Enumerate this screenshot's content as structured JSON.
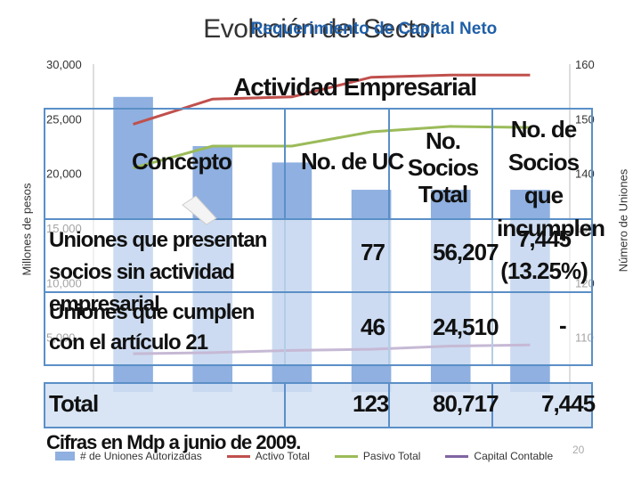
{
  "title_main": "Evolución del Sector",
  "title_overlay": "Requerimiento de Capital Neto",
  "table_title": "Actividad Empresarial",
  "table": {
    "headers": [
      "Concepto",
      "No. de UC",
      "No. Socios Total",
      "No. de Socios que incumplen"
    ],
    "rows": [
      {
        "concepto": "Uniones que presentan socios sin actividad empresarial",
        "uc": "77",
        "socios": "56,207",
        "incumplen": "7,445 (13.25%)"
      },
      {
        "concepto": "Uniones que cumplen con el artículo 21",
        "uc": "46",
        "socios": "24,510",
        "incumplen": "-"
      }
    ],
    "total": {
      "label": "Total",
      "uc": "123",
      "socios": "80,717",
      "incumplen": "7,445"
    }
  },
  "footnote": "Cifras en Mdp a junio de 2009.",
  "page_number": "20",
  "colors": {
    "bars": "#8fb0e0",
    "activo": "#c0504d",
    "pasivo": "#9bbb59",
    "capital": "#8064a2",
    "table_border": "#5b8fc7"
  },
  "chart_data": {
    "type": "bar",
    "ylabel": "Millones de pesos",
    "y2label": "Número de Uniones",
    "ylim": [
      0,
      30000
    ],
    "y2lim": [
      100,
      160
    ],
    "yticks": [
      "30,000",
      "25,000",
      "20,000",
      "15,000",
      "10,000",
      "5,000"
    ],
    "y2ticks": [
      "160",
      "150",
      "140",
      "130",
      "120",
      "110"
    ],
    "series": [
      {
        "name": "# de Uniones Autorizadas",
        "axis": "right",
        "kind": "bar",
        "values": [
          154,
          145,
          142,
          137,
          137,
          137
        ]
      },
      {
        "name": "Activo Total",
        "axis": "left",
        "kind": "line",
        "values": [
          24500,
          26800,
          27000,
          28800,
          29000,
          29000
        ]
      },
      {
        "name": "Pasivo Total",
        "axis": "left",
        "kind": "line",
        "values": [
          20500,
          22500,
          22500,
          23800,
          24300,
          24200
        ]
      },
      {
        "name": "Capital Contable",
        "axis": "left",
        "kind": "line",
        "values": [
          3500,
          3600,
          3800,
          3900,
          4200,
          4300
        ]
      }
    ]
  }
}
